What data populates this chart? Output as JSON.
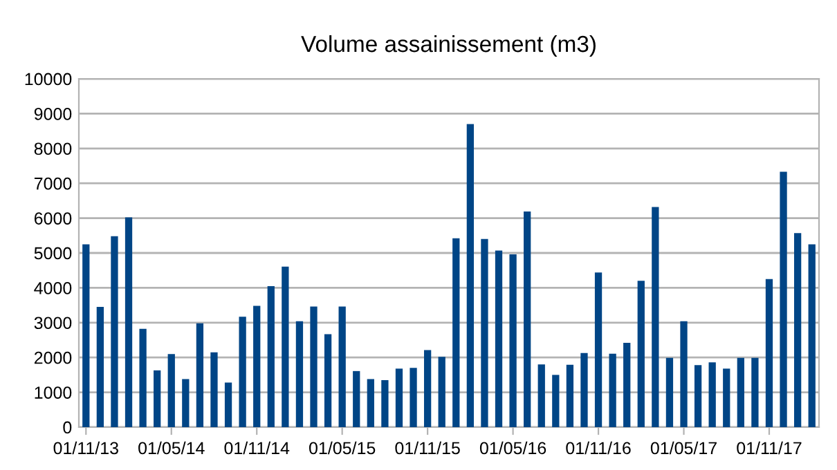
{
  "chart_data": {
    "type": "bar",
    "title": "Volume assainissement (m3)",
    "categories": [
      "01/11/13",
      null,
      null,
      null,
      null,
      null,
      "01/05/14",
      null,
      null,
      null,
      null,
      null,
      "01/11/14",
      null,
      null,
      null,
      null,
      null,
      "01/05/15",
      null,
      null,
      null,
      null,
      null,
      "01/11/15",
      null,
      null,
      null,
      null,
      null,
      "01/05/16",
      null,
      null,
      null,
      null,
      null,
      "01/11/16",
      null,
      null,
      null,
      null,
      null,
      "01/05/17",
      null,
      null,
      null,
      null,
      null,
      "01/11/17",
      null,
      null,
      null
    ],
    "values": [
      5250,
      3450,
      5480,
      6020,
      2820,
      1630,
      2100,
      1380,
      2980,
      2150,
      1280,
      3170,
      3480,
      4050,
      4610,
      3040,
      3460,
      2670,
      3460,
      1610,
      1380,
      1350,
      1680,
      1700,
      2210,
      2020,
      5420,
      8700,
      5400,
      5070,
      4960,
      6190,
      1800,
      1500,
      1790,
      2130,
      4440,
      2110,
      2420,
      4200,
      6320,
      1990,
      3040,
      1780,
      1860,
      1680,
      1990,
      1990,
      4250,
      7330,
      5570,
      5250
    ],
    "color": "#004586",
    "ylim": [
      0,
      10000
    ],
    "yticks": [
      0,
      1000,
      2000,
      3000,
      4000,
      5000,
      6000,
      7000,
      8000,
      9000,
      10000
    ],
    "grid": "y"
  }
}
